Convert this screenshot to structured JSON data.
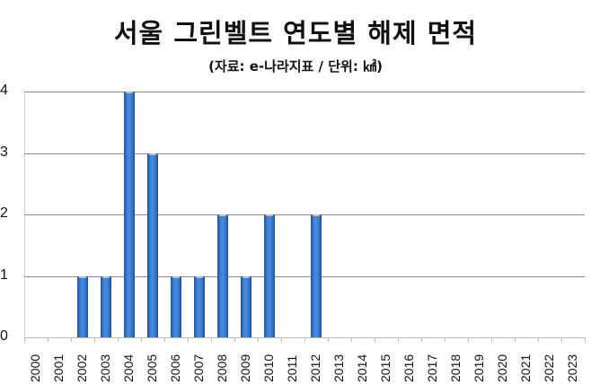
{
  "header": {
    "title": "서울 그린벨트 연도별 해제 면적",
    "subtitle": "(자료: e-나라지표 / 단위: ㎢)"
  },
  "colors": {
    "bar": "#3a78c8",
    "grid": "#8c8c8c"
  },
  "chart_data": {
    "type": "bar",
    "title": "서울 그린벨트 연도별 해제 면적",
    "subtitle": "(자료: e-나라지표 / 단위: ㎢)",
    "xlabel": "",
    "ylabel": "",
    "ylim": [
      0,
      4
    ],
    "yticks": [
      "0",
      "1",
      "2",
      "3",
      "4"
    ],
    "grid": true,
    "legend": null,
    "categories": [
      "2000",
      "2001",
      "2002",
      "2003",
      "2004",
      "2005",
      "2006",
      "2007",
      "2008",
      "2009",
      "2010",
      "2011",
      "2012",
      "2013",
      "2014",
      "2015",
      "2016",
      "2017",
      "2018",
      "2019",
      "2020",
      "2021",
      "2022",
      "2023"
    ],
    "values": [
      0,
      0,
      1,
      1,
      4,
      3,
      1,
      1,
      2,
      1,
      2,
      0,
      2,
      0,
      0,
      0,
      0,
      0,
      0,
      0,
      0,
      0,
      0,
      0
    ]
  }
}
